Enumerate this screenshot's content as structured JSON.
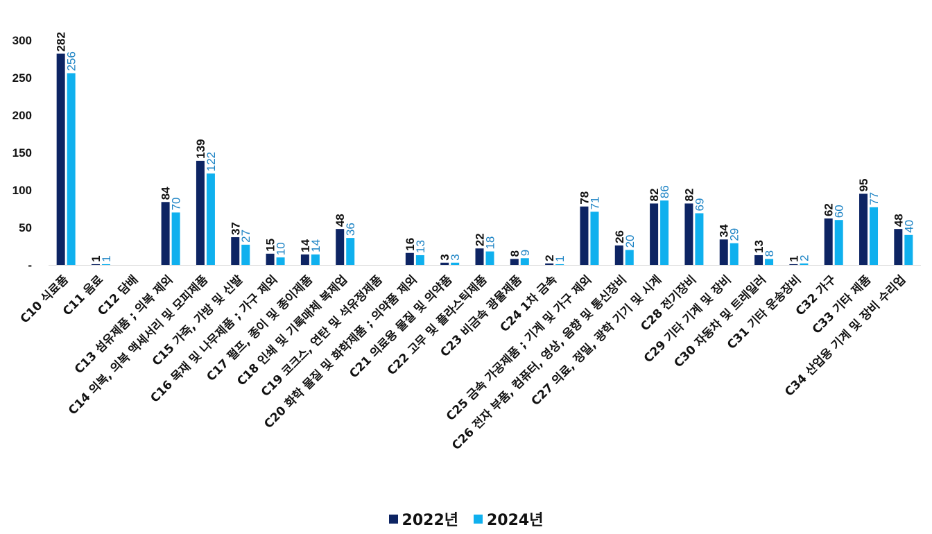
{
  "chart_data": {
    "type": "bar",
    "title": "",
    "xlabel": "",
    "ylabel": "",
    "ylim": [
      0,
      300
    ],
    "yticks": [
      0,
      50,
      100,
      150,
      200,
      250,
      300
    ],
    "ytick_labels": [
      "-",
      "50",
      "100",
      "150",
      "200",
      "250",
      "300"
    ],
    "grid": false,
    "legend_position": "bottom",
    "categories": [
      "C10 식료품",
      "C11 음료",
      "C12 담배",
      "C13 섬유제품 ; 의복 제외",
      "C14 의복, 의복 액세서리 및 모피제품",
      "C15 가죽, 가방 및 신발",
      "C16 목재 및 나무제품 ; 가구 제외",
      "C17 펄프, 종이 및 종이제품",
      "C18 인쇄 및 기록매체 복제업",
      "C19 코크스, 연탄 및 석유정제품",
      "C20 화학 물질 및 화학제품 ; 의약품 제외",
      "C21 의료용 물질 및 의약품",
      "C22 고무 및 플라스틱제품",
      "C23 비금속 광물제품",
      "C24 1차 금속",
      "C25 금속 가공제품 ; 기계 및 가구 제외",
      "C26 전자 부품, 컴퓨터, 영상, 음향 및 통신장비",
      "C27 의료, 정밀, 광학 기기 및 시계",
      "C28 전기장비",
      "C29 기타 기계 및 장비",
      "C30 자동차 및 트레일러",
      "C31 기타 운송장비",
      "C32 가구",
      "C33 기타 제품",
      "C34 산업용 기계 및 장비 수리업"
    ],
    "series": [
      {
        "name": "2022년",
        "color": "#0d2463",
        "values": [
          282,
          1,
          null,
          84,
          139,
          37,
          15,
          14,
          48,
          null,
          16,
          3,
          22,
          8,
          2,
          78,
          26,
          82,
          82,
          34,
          13,
          1,
          62,
          95,
          48
        ],
        "labels": [
          "282",
          "1",
          "",
          "84",
          "139",
          "37",
          "15",
          "14",
          "48",
          "",
          "16",
          "3",
          "22",
          "8",
          "2",
          "78",
          "26",
          "82",
          "82",
          "34",
          "13",
          "1",
          "62",
          "95",
          "48"
        ]
      },
      {
        "name": "2024년",
        "color": "#0fb0ee",
        "label_color": "#1a82c4",
        "values": [
          256,
          1,
          null,
          70,
          122,
          27,
          10,
          14,
          36,
          null,
          13,
          3,
          18,
          9,
          1,
          71,
          20,
          86,
          69,
          29,
          8,
          2,
          60,
          77,
          40
        ],
        "labels": [
          "256",
          "1",
          "",
          "70",
          "122",
          "27",
          "10",
          "14",
          "36",
          "",
          "13",
          "3",
          "18",
          "9",
          "1",
          "71",
          "20",
          "86",
          "69",
          "29",
          "8",
          "2",
          "60",
          "77",
          "40"
        ]
      }
    ]
  }
}
